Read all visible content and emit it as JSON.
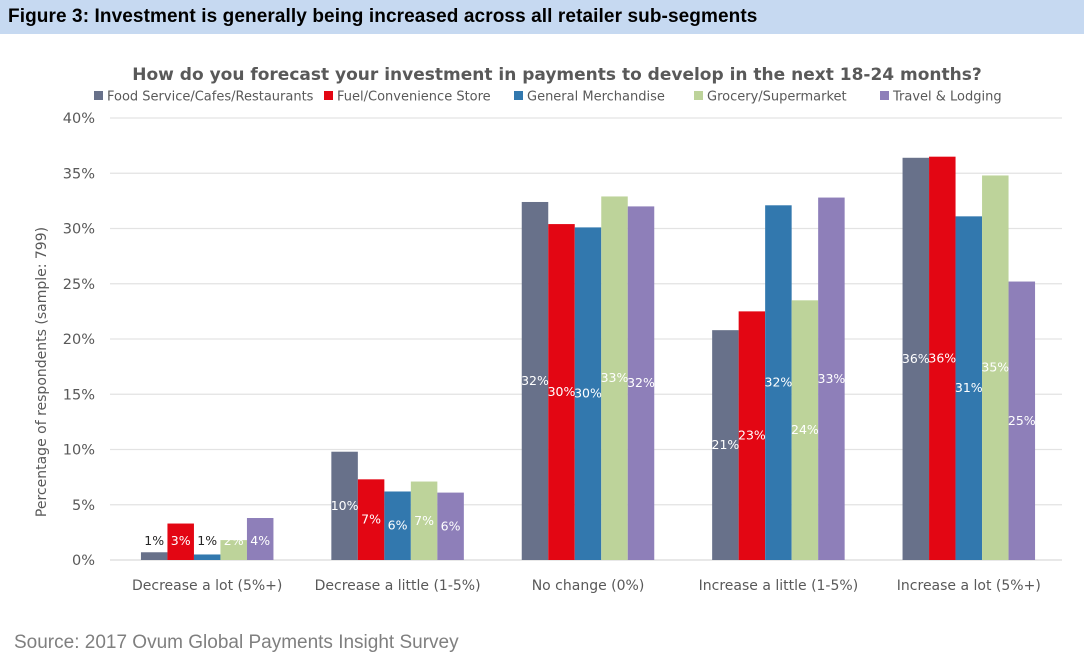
{
  "figure": {
    "title": "Figure 3: Investment is generally being increased across all retailer sub-segments",
    "source": "Source: 2017 Ovum Global Payments Insight Survey"
  },
  "chart_data": {
    "type": "bar",
    "title": "How do you forecast your investment in payments to develop in the next 18-24 months?",
    "xlabel": "",
    "ylabel": "Percentage of respondents (sample: 799)",
    "ylim": [
      0,
      40
    ],
    "yticks": [
      0,
      5,
      10,
      15,
      20,
      25,
      30,
      35,
      40
    ],
    "ytick_labels": [
      "0%",
      "5%",
      "10%",
      "15%",
      "20%",
      "25%",
      "30%",
      "35%",
      "40%"
    ],
    "grid": true,
    "legend_position": "top",
    "categories": [
      "Decrease a lot (5%+)",
      "Decrease a little (1-5%)",
      "No change (0%)",
      "Increase a little (1-5%)",
      "Increase a lot (5%+)"
    ],
    "series": [
      {
        "name": "Food Service/Cafes/Restaurants",
        "color": "#68718a",
        "values": [
          0.7,
          9.8,
          32.4,
          20.8,
          36.4
        ],
        "labels": [
          "1%",
          "10%",
          "32%",
          "21%",
          "36%"
        ],
        "label_color": "#ffffff"
      },
      {
        "name": "Fuel/Convenience Store",
        "color": "#e30613",
        "values": [
          3.3,
          7.3,
          30.4,
          22.5,
          36.5
        ],
        "labels": [
          "3%",
          "7%",
          "30%",
          "23%",
          "36%"
        ],
        "label_color": "#ffffff"
      },
      {
        "name": "General Merchandise",
        "color": "#3278ae",
        "values": [
          0.5,
          6.2,
          30.1,
          32.1,
          31.1
        ],
        "labels": [
          "1%",
          "6%",
          "30%",
          "32%",
          "31%"
        ],
        "label_color": "#ffffff"
      },
      {
        "name": "Grocery/Supermarket",
        "color": "#bdd39a",
        "values": [
          1.8,
          7.1,
          32.9,
          23.5,
          34.8
        ],
        "labels": [
          "2%",
          "7%",
          "33%",
          "24%",
          "35%"
        ],
        "label_color": "#ffffff"
      },
      {
        "name": "Travel & Lodging",
        "color": "#8e7fb9",
        "values": [
          3.8,
          6.1,
          32.0,
          32.8,
          25.2
        ],
        "labels": [
          "4%",
          "6%",
          "32%",
          "33%",
          "25%"
        ],
        "label_color": "#ffffff"
      }
    ]
  }
}
